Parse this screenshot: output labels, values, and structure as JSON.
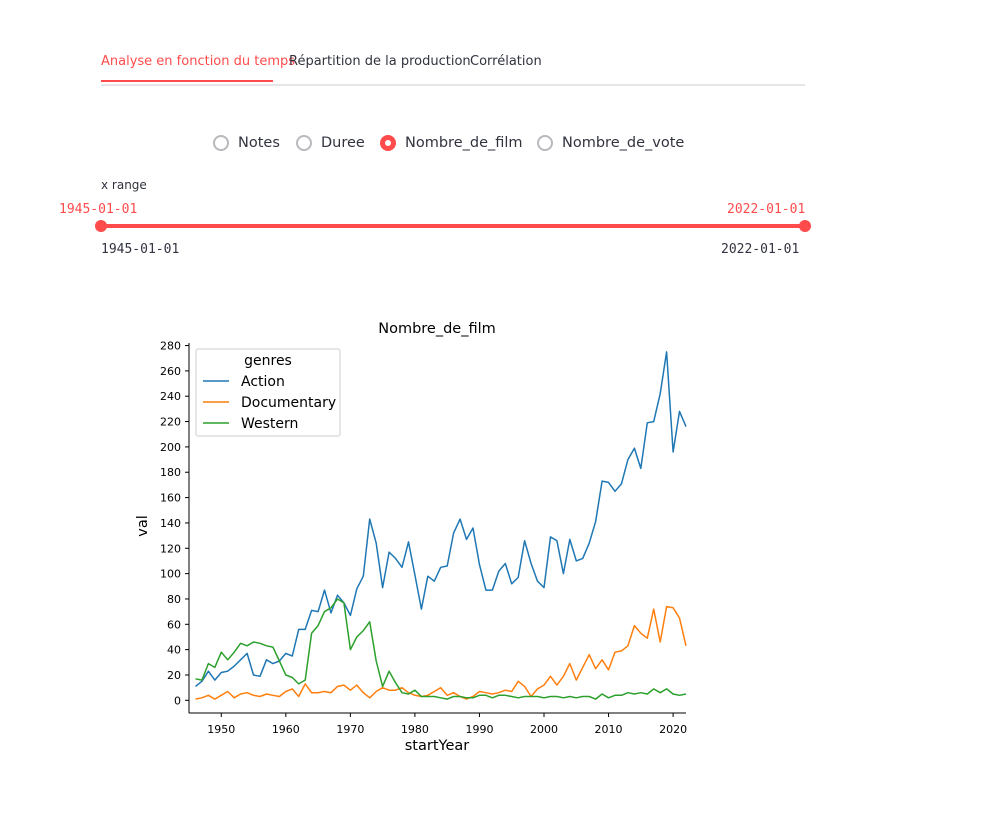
{
  "tabs": [
    {
      "label": "Analyse en fonction du temps",
      "active": true
    },
    {
      "label": "Répartition de la production",
      "active": false
    },
    {
      "label": "Corrélation",
      "active": false
    }
  ],
  "radio_options": [
    {
      "label": "Notes",
      "checked": false
    },
    {
      "label": "Duree",
      "checked": false
    },
    {
      "label": "Nombre_de_film",
      "checked": true
    },
    {
      "label": "Nombre_de_vote",
      "checked": false
    }
  ],
  "slider": {
    "label": "x range",
    "value_start": "1945-01-01",
    "value_end": "2022-01-01",
    "min": "1945-01-01",
    "max": "2022-01-01"
  },
  "colors": {
    "accent": "#ff4b4b",
    "Action": "#1f77b4",
    "Documentary": "#ff7f0e",
    "Western": "#2ca02c"
  },
  "chart_data": {
    "type": "line",
    "title": "Nombre_de_film",
    "xlabel": "startYear",
    "ylabel": "val",
    "xlim": [
      1945,
      2022
    ],
    "ylim": [
      -10,
      282
    ],
    "xticks": [
      1950,
      1960,
      1970,
      1980,
      1990,
      2000,
      2010,
      2020
    ],
    "yticks": [
      0,
      20,
      40,
      60,
      80,
      100,
      120,
      140,
      160,
      180,
      200,
      220,
      240,
      260,
      280
    ],
    "legend": {
      "title": "genres",
      "position": "upper-left"
    },
    "x": [
      1946,
      1947,
      1948,
      1949,
      1950,
      1951,
      1952,
      1953,
      1954,
      1955,
      1956,
      1957,
      1958,
      1959,
      1960,
      1961,
      1962,
      1963,
      1964,
      1965,
      1966,
      1967,
      1968,
      1969,
      1970,
      1971,
      1972,
      1973,
      1974,
      1975,
      1976,
      1977,
      1978,
      1979,
      1980,
      1981,
      1982,
      1983,
      1984,
      1985,
      1986,
      1987,
      1988,
      1989,
      1990,
      1991,
      1992,
      1993,
      1994,
      1995,
      1996,
      1997,
      1998,
      1999,
      2000,
      2001,
      2002,
      2003,
      2004,
      2005,
      2006,
      2007,
      2008,
      2009,
      2010,
      2011,
      2012,
      2013,
      2014,
      2015,
      2016,
      2017,
      2018,
      2019,
      2020,
      2021,
      2022
    ],
    "series": [
      {
        "name": "Action",
        "values": [
          11,
          15,
          23,
          16,
          22,
          23,
          27,
          32,
          37,
          20,
          19,
          32,
          29,
          31,
          37,
          35,
          56,
          56,
          71,
          70,
          87,
          69,
          83,
          77,
          67,
          88,
          98,
          143,
          124,
          89,
          117,
          112,
          105,
          125,
          99,
          72,
          98,
          94,
          105,
          106,
          132,
          143,
          127,
          136,
          107,
          87,
          87,
          102,
          108,
          92,
          97,
          126,
          108,
          94,
          89,
          129,
          126,
          100,
          127,
          110,
          112,
          124,
          141,
          173,
          172,
          165,
          171,
          190,
          199,
          183,
          219,
          220,
          242,
          275,
          196,
          228,
          216
        ]
      },
      {
        "name": "Documentary",
        "values": [
          1,
          2,
          4,
          1,
          4,
          7,
          2,
          5,
          6,
          4,
          3,
          5,
          4,
          3,
          7,
          9,
          3,
          13,
          6,
          6,
          7,
          6,
          11,
          12,
          8,
          12,
          6,
          2,
          7,
          10,
          8,
          8,
          10,
          6,
          4,
          3,
          4,
          7,
          10,
          4,
          6,
          3,
          1,
          3,
          7,
          6,
          5,
          6,
          8,
          7,
          15,
          11,
          3,
          9,
          12,
          19,
          12,
          19,
          29,
          16,
          26,
          36,
          25,
          32,
          24,
          38,
          39,
          43,
          59,
          53,
          49,
          72,
          46,
          74,
          73,
          65,
          43
        ]
      },
      {
        "name": "Western",
        "values": [
          17,
          16,
          29,
          26,
          38,
          32,
          38,
          45,
          43,
          46,
          45,
          43,
          42,
          31,
          20,
          18,
          13,
          16,
          53,
          59,
          70,
          73,
          80,
          77,
          40,
          50,
          55,
          62,
          31,
          11,
          23,
          14,
          6,
          5,
          8,
          3,
          3,
          3,
          2,
          1,
          3,
          3,
          2,
          2,
          4,
          4,
          2,
          4,
          4,
          3,
          2,
          3,
          3,
          3,
          2,
          3,
          3,
          2,
          3,
          2,
          3,
          3,
          1,
          5,
          2,
          4,
          4,
          6,
          5,
          6,
          5,
          9,
          6,
          9,
          5,
          4,
          5
        ]
      }
    ]
  }
}
